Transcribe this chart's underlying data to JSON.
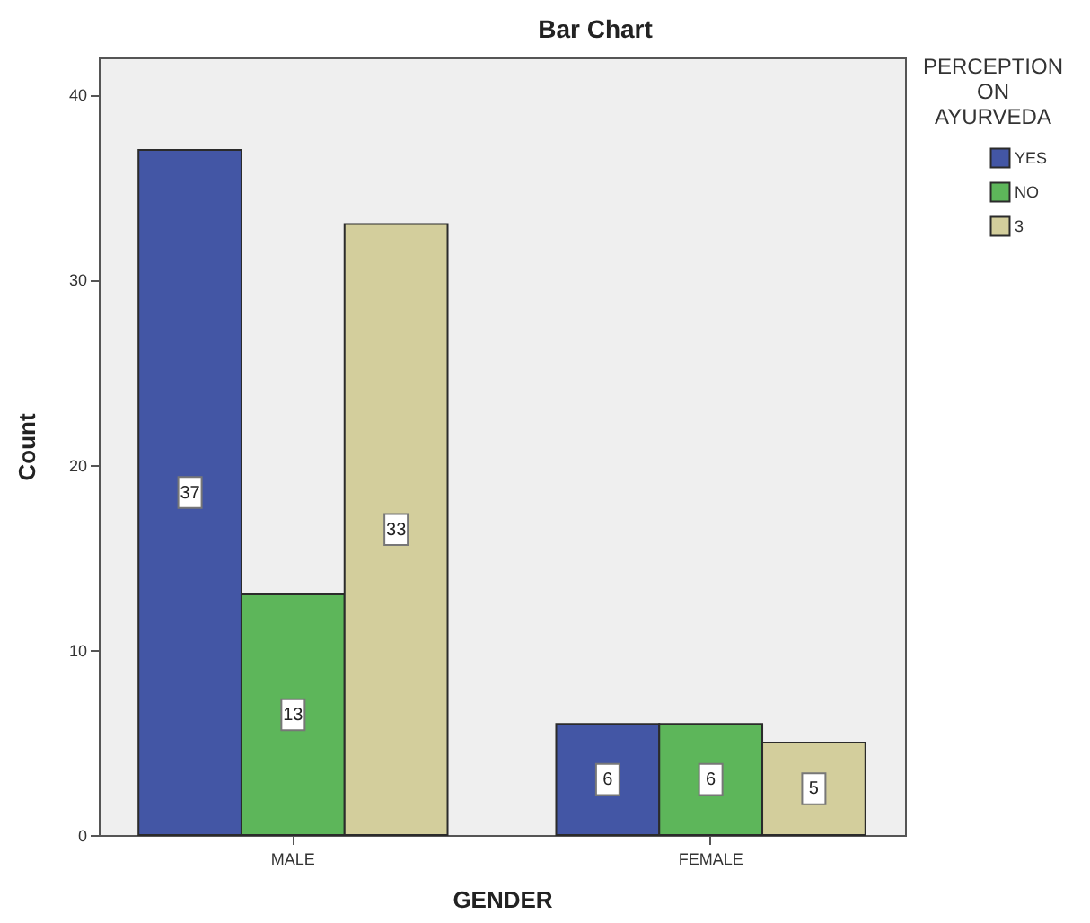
{
  "chart_data": {
    "type": "bar",
    "title": "Bar Chart",
    "xlabel": "GENDER",
    "ylabel": "Count",
    "legend_title": "PERCEPTION ON AYURVEDA",
    "categories": [
      "MALE",
      "FEMALE"
    ],
    "series": [
      {
        "name": "YES",
        "color": "#4356a5",
        "values": [
          37,
          6
        ]
      },
      {
        "name": "NO",
        "color": "#5db65a",
        "values": [
          13,
          6
        ]
      },
      {
        "name": "3",
        "color": "#d3ce9c",
        "values": [
          33,
          5
        ]
      }
    ],
    "ylim": [
      0,
      42
    ],
    "yticks": [
      0,
      10,
      20,
      30,
      40
    ],
    "data_labels": true,
    "legend": "right"
  }
}
